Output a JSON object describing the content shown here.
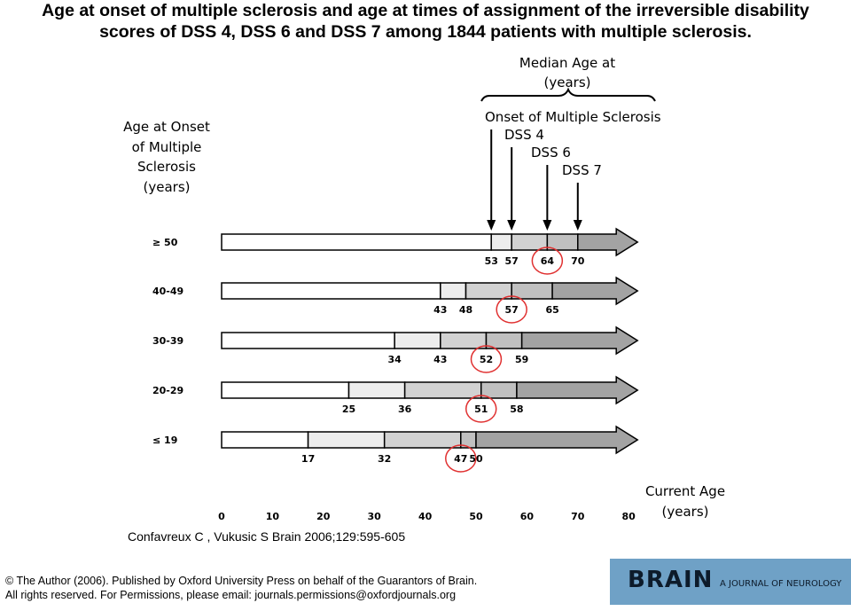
{
  "title_line1": "Age at onset of multiple sclerosis and age at times of assignment of the irreversible disability",
  "title_line2": "scores of DSS 4, DSS 6 and DSS 7 among 1844 patients with multiple sclerosis.",
  "chart_data": {
    "type": "bar",
    "subtype": "horizontal-arrow-timeline",
    "y_axis_title": [
      "Age at Onset",
      "of Multiple",
      "Sclerosis",
      "(years)"
    ],
    "header_title": [
      "Median Age at",
      "(years)"
    ],
    "stage_labels": [
      "Onset of Multiple Sclerosis",
      "DSS 4",
      "DSS 6",
      "DSS 7"
    ],
    "x_axis_title": [
      "Current Age",
      "(years)"
    ],
    "x_ticks": [
      0,
      10,
      20,
      30,
      40,
      50,
      60,
      70,
      80
    ],
    "xlim": [
      0,
      80
    ],
    "categories": [
      "≥ 50",
      "40-49",
      "30-39",
      "20-29",
      "≤ 19"
    ],
    "series": [
      {
        "name": "Onset of Multiple Sclerosis",
        "values": [
          53,
          43,
          34,
          25,
          17
        ]
      },
      {
        "name": "DSS 4",
        "values": [
          57,
          48,
          43,
          36,
          32
        ]
      },
      {
        "name": "DSS 6",
        "values": [
          64,
          57,
          52,
          51,
          47
        ]
      },
      {
        "name": "DSS 7",
        "values": [
          70,
          65,
          59,
          58,
          50
        ]
      }
    ],
    "highlighted_series": "DSS 6",
    "colors": {
      "onset_segment": "#ededed",
      "dss4_segment": "#d2d2d2",
      "dss6_segment": "#c0c0c0",
      "dss7_segment": "#a3a3a3",
      "highlight_circle": "#e03030"
    }
  },
  "citation": "Confavreux C , Vukusic S Brain 2006;129:595-605",
  "footer_line1": "© The Author (2006). Published by Oxford University Press on behalf of the Guarantors of Brain.",
  "footer_line2": "All rights reserved. For Permissions, please email: journals.permissions@oxfordjournals.org",
  "brand": {
    "name": "BRAIN",
    "tagline": "A JOURNAL OF NEUROLOGY"
  }
}
